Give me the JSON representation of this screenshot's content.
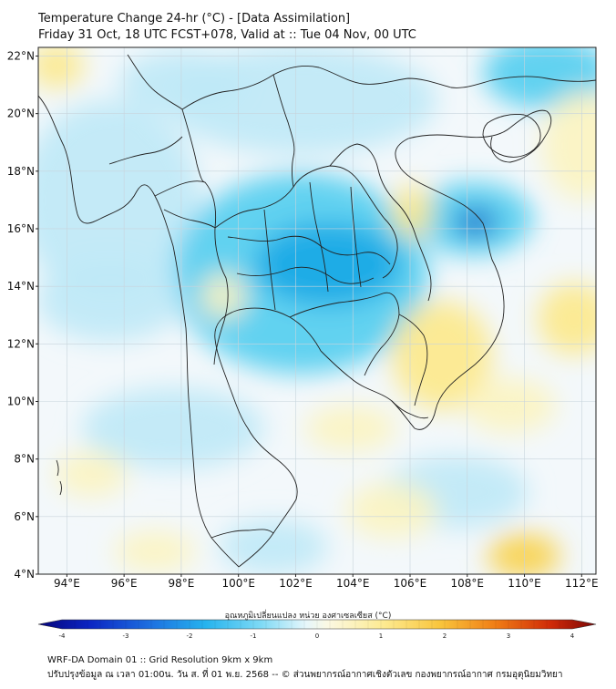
{
  "header": {
    "title": "Temperature Change 24-hr (°C) - [Data Assimilation]",
    "subtitle": "Friday 31 Oct, 18 UTC FCST+078, Valid at :: Tue 04 Nov, 00 UTC"
  },
  "map": {
    "lat_labels": [
      "22°N",
      "20°N",
      "18°N",
      "16°N",
      "14°N",
      "12°N",
      "10°N",
      "8°N",
      "6°N",
      "4°N"
    ],
    "lon_labels": [
      "94°E",
      "96°E",
      "98°E",
      "100°E",
      "102°E",
      "104°E",
      "106°E",
      "108°E",
      "110°E",
      "112°E"
    ],
    "extent": {
      "lon": [
        93,
        112.5
      ],
      "lat": [
        4,
        22.3
      ]
    },
    "colors": {
      "background_neutral": "#f3f8fb",
      "cool_light": "#bfe9f7",
      "cool_mid": "#52cdf0",
      "cool_strong": "#1aa8e6",
      "cool_deep": "#1565c8",
      "warm_light": "#fcf4c0",
      "warm_mid": "#fde98a",
      "warm_strong": "#f8d24a",
      "border_line": "#222222",
      "grid_line": "#c8d4dc"
    }
  },
  "colorbar": {
    "title": "อุณหภูมิเปลี่ยนแปลง หน่วย องศาเซลเซียส (°C)",
    "ticks": [
      "-4",
      "-3",
      "-2",
      "-1",
      "0",
      "1",
      "2",
      "3",
      "4"
    ],
    "range": [
      -4,
      4
    ]
  },
  "footer": {
    "line1": "WRF-DA Domain 01 :: Grid Resolution 9km x 9km",
    "line2": "ปรับปรุงข้อมูล ณ เวลา 01:00น. วัน ส. ที่ 01 พ.ย. 2568 -- © ส่วนพยากรณ์อากาศเชิงตัวเลข กองพยากรณ์อากาศ กรมอุตุนิยมวิทยา"
  }
}
